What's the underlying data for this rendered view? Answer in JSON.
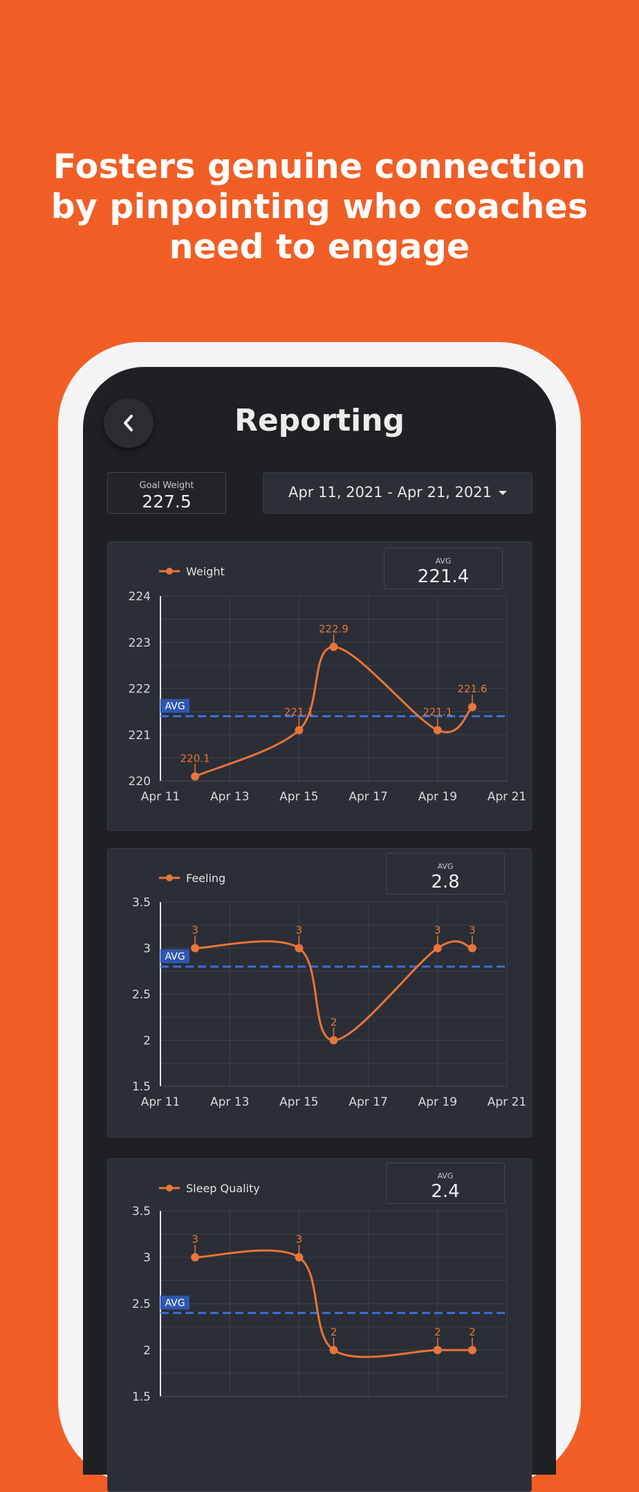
{
  "headline": [
    "Fosters genuine connection",
    "by pinpointing who coaches",
    "need to engage"
  ],
  "screen": {
    "title": "Reporting",
    "back_icon": "chevron-left-icon",
    "goal": {
      "label": "Goal Weight",
      "value": "227.5"
    },
    "date_range": {
      "value": "Apr 11, 2021 - Apr 21, 2021",
      "icon": "caret-down-icon"
    }
  },
  "colors": {
    "background": "#F15E25",
    "screen": "#1F2023",
    "card": "#2B2E36",
    "series": "#E8753A",
    "avg_line": "#3A6FD8"
  },
  "chart_data": [
    {
      "type": "line",
      "legend": "Weight",
      "avg_label": "AVG",
      "avg_value": "221.4",
      "avg_tag": "AVG",
      "avg": 221.4,
      "x_ticks": [
        "Apr 11",
        "Apr 13",
        "Apr 15",
        "Apr 17",
        "Apr 19",
        "Apr 21"
      ],
      "x_range": [
        11,
        21
      ],
      "ylim": [
        220,
        224
      ],
      "y_ticks": [
        "220",
        "221",
        "222",
        "223",
        "224"
      ],
      "points": [
        {
          "x": 12,
          "y": 220.1,
          "label": "220.1"
        },
        {
          "x": 15,
          "y": 221.1,
          "label": "221.1"
        },
        {
          "x": 16,
          "y": 222.9,
          "label": "222.9"
        },
        {
          "x": 19,
          "y": 221.1,
          "label": "221.1"
        },
        {
          "x": 20,
          "y": 221.6,
          "label": "221.6"
        }
      ]
    },
    {
      "type": "line",
      "legend": "Feeling",
      "avg_label": "AVG",
      "avg_value": "2.8",
      "avg_tag": "AVG",
      "avg": 2.8,
      "x_ticks": [
        "Apr 11",
        "Apr 13",
        "Apr 15",
        "Apr 17",
        "Apr 19",
        "Apr 21"
      ],
      "x_range": [
        11,
        21
      ],
      "ylim": [
        1.5,
        3.5
      ],
      "y_ticks": [
        "1.5",
        "2",
        "2.5",
        "3",
        "3.5"
      ],
      "points": [
        {
          "x": 12,
          "y": 3,
          "label": "3"
        },
        {
          "x": 15,
          "y": 3,
          "label": "3"
        },
        {
          "x": 16,
          "y": 2,
          "label": "2"
        },
        {
          "x": 19,
          "y": 3,
          "label": "3"
        },
        {
          "x": 20,
          "y": 3,
          "label": "3"
        }
      ]
    },
    {
      "type": "line",
      "legend": "Sleep Quality",
      "avg_label": "AVG",
      "avg_value": "2.4",
      "avg_tag": "AVG",
      "avg": 2.4,
      "x_ticks": [],
      "x_range": [
        11,
        21
      ],
      "ylim": [
        1.5,
        3.5
      ],
      "y_ticks": [
        "1.5",
        "2",
        "2.5",
        "3",
        "3.5"
      ],
      "points": [
        {
          "x": 12,
          "y": 3,
          "label": "3"
        },
        {
          "x": 15,
          "y": 3,
          "label": "3"
        },
        {
          "x": 16,
          "y": 2,
          "label": "2"
        },
        {
          "x": 19,
          "y": 2,
          "label": "2"
        },
        {
          "x": 20,
          "y": 2,
          "label": "2"
        }
      ]
    }
  ]
}
